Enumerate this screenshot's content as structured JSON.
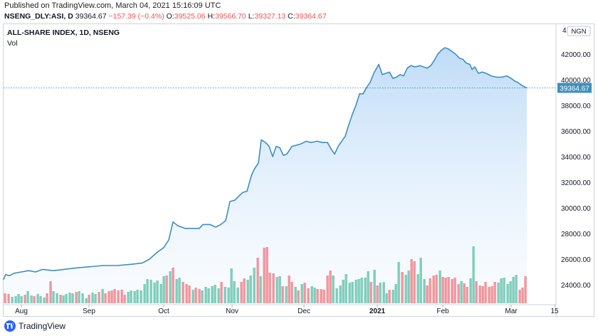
{
  "header": {
    "published": "Published on TradingView.com, March 04, 2021 15:16:09 UTC",
    "symbol": "NSENG_DLY:ASI, D",
    "last": "39364.67",
    "change": "−157.39 (−0.4%)",
    "o_label": "O:",
    "o_value": "39525.06",
    "h_label": "H:",
    "h_value": "39566.70",
    "l_label": "L:",
    "l_value": "39327.13",
    "c_label": "C:",
    "c_value": "39364.67"
  },
  "legend": {
    "title": "ALL-SHARE INDEX, 1D, NSENG",
    "vol_label": "Vol"
  },
  "footer": {
    "brand": "TradingView"
  },
  "colors": {
    "line": "#3d8fbf",
    "fill_top": "#a9d0f5",
    "vol_up": "#7fcdbb",
    "vol_down": "#f0959c",
    "last_price_bg": "#3d8fbf"
  },
  "chart_data": {
    "type": "area",
    "title": "ALL-SHARE INDEX, 1D, NSENG",
    "currency_badge": "NGN",
    "y_axis_top_label_partial": "4",
    "ylim": [
      23000,
      44000
    ],
    "y_ticks": [
      "42000.00",
      "40000.00",
      "38000.00",
      "36000.00",
      "34000.00",
      "32000.00",
      "30000.00",
      "28000.00",
      "26000.00",
      "24000.00"
    ],
    "y_tick_values": [
      42000,
      40000,
      38000,
      36000,
      34000,
      32000,
      30000,
      28000,
      26000,
      24000
    ],
    "x_tick_labels": [
      "Aug",
      "Sep",
      "Oct",
      "Nov",
      "Dec",
      "2021",
      "Feb",
      "Mar",
      "15"
    ],
    "last_value": 39364.67,
    "last_value_label": "39364.67",
    "series": [
      {
        "name": "ALL-SHARE INDEX",
        "points": [
          [
            0,
            24400
          ],
          [
            3,
            24800
          ],
          [
            8,
            24700
          ],
          [
            15,
            24900
          ],
          [
            25,
            25000
          ],
          [
            35,
            25100
          ],
          [
            45,
            25000
          ],
          [
            55,
            25200
          ],
          [
            70,
            25100
          ],
          [
            85,
            25200
          ],
          [
            100,
            25300
          ],
          [
            120,
            25400
          ],
          [
            140,
            25500
          ],
          [
            160,
            25500
          ],
          [
            180,
            25600
          ],
          [
            195,
            25700
          ],
          [
            205,
            26000
          ],
          [
            215,
            26500
          ],
          [
            225,
            26900
          ],
          [
            232,
            27500
          ],
          [
            238,
            28900
          ],
          [
            245,
            28600
          ],
          [
            255,
            28400
          ],
          [
            265,
            28400
          ],
          [
            275,
            28400
          ],
          [
            280,
            28700
          ],
          [
            290,
            28700
          ],
          [
            298,
            28500
          ],
          [
            305,
            28700
          ],
          [
            312,
            29000
          ],
          [
            318,
            30500
          ],
          [
            325,
            30600
          ],
          [
            330,
            30900
          ],
          [
            336,
            31200
          ],
          [
            342,
            31300
          ],
          [
            348,
            32500
          ],
          [
            352,
            33000
          ],
          [
            358,
            33500
          ],
          [
            362,
            35300
          ],
          [
            368,
            35100
          ],
          [
            373,
            34800
          ],
          [
            378,
            34000
          ],
          [
            383,
            34800
          ],
          [
            388,
            34700
          ],
          [
            393,
            34100
          ],
          [
            398,
            34200
          ],
          [
            405,
            34800
          ],
          [
            412,
            34900
          ],
          [
            418,
            35000
          ],
          [
            425,
            35200
          ],
          [
            432,
            35100
          ],
          [
            440,
            35200
          ],
          [
            448,
            35100
          ],
          [
            455,
            35100
          ],
          [
            460,
            34600
          ],
          [
            465,
            34200
          ],
          [
            470,
            34800
          ],
          [
            475,
            35200
          ],
          [
            480,
            35600
          ],
          [
            485,
            36500
          ],
          [
            490,
            37300
          ],
          [
            495,
            38000
          ],
          [
            500,
            38900
          ],
          [
            505,
            38900
          ],
          [
            510,
            39400
          ],
          [
            515,
            39800
          ],
          [
            520,
            40500
          ],
          [
            527,
            41200
          ],
          [
            532,
            40400
          ],
          [
            537,
            40500
          ],
          [
            542,
            40600
          ],
          [
            547,
            40100
          ],
          [
            552,
            40200
          ],
          [
            557,
            40400
          ],
          [
            562,
            40300
          ],
          [
            567,
            40900
          ],
          [
            572,
            41100
          ],
          [
            578,
            41000
          ],
          [
            585,
            41100
          ],
          [
            590,
            41000
          ],
          [
            595,
            40900
          ],
          [
            600,
            41100
          ],
          [
            605,
            41500
          ],
          [
            610,
            42000
          ],
          [
            615,
            42300
          ],
          [
            620,
            42500
          ],
          [
            625,
            42400
          ],
          [
            630,
            42200
          ],
          [
            635,
            42000
          ],
          [
            640,
            41700
          ],
          [
            645,
            41600
          ],
          [
            650,
            41300
          ],
          [
            655,
            41200
          ],
          [
            658,
            40800
          ],
          [
            662,
            41000
          ],
          [
            667,
            40500
          ],
          [
            672,
            40600
          ],
          [
            678,
            40500
          ],
          [
            685,
            40300
          ],
          [
            692,
            40200
          ],
          [
            700,
            40200
          ],
          [
            707,
            40300
          ],
          [
            713,
            40100
          ],
          [
            718,
            39900
          ],
          [
            722,
            39800
          ],
          [
            727,
            39600
          ],
          [
            733,
            39400
          ],
          [
            735,
            39364.67
          ]
        ]
      }
    ],
    "volume": {
      "name": "Vol",
      "bars": [
        [
          2,
          0.14,
          0
        ],
        [
          7,
          0.13,
          0
        ],
        [
          12,
          0.09,
          1
        ],
        [
          17,
          0.1,
          1
        ],
        [
          21,
          0.13,
          1
        ],
        [
          25,
          0.1,
          1
        ],
        [
          30,
          0.12,
          0
        ],
        [
          34,
          0.17,
          1
        ],
        [
          39,
          0.11,
          1
        ],
        [
          43,
          0.1,
          0
        ],
        [
          48,
          0.13,
          1
        ],
        [
          52,
          0.1,
          1
        ],
        [
          57,
          0.08,
          1
        ],
        [
          61,
          0.14,
          0
        ],
        [
          66,
          0.31,
          0
        ],
        [
          70,
          0.17,
          1
        ],
        [
          75,
          0.14,
          1
        ],
        [
          80,
          0.12,
          0
        ],
        [
          84,
          0.11,
          1
        ],
        [
          88,
          0.13,
          1
        ],
        [
          93,
          0.15,
          1
        ],
        [
          97,
          0.14,
          1
        ],
        [
          102,
          0.16,
          0
        ],
        [
          106,
          0.17,
          1
        ],
        [
          111,
          0.14,
          1
        ],
        [
          116,
          0.07,
          1
        ],
        [
          120,
          0.12,
          0
        ],
        [
          125,
          0.15,
          1
        ],
        [
          129,
          0.13,
          1
        ],
        [
          134,
          0.16,
          0
        ],
        [
          139,
          0.2,
          1
        ],
        [
          143,
          0.14,
          0
        ],
        [
          148,
          0.17,
          0
        ],
        [
          152,
          0.18,
          0
        ],
        [
          156,
          0.2,
          0
        ],
        [
          161,
          0.18,
          0
        ],
        [
          166,
          0.19,
          0
        ],
        [
          170,
          0.12,
          0
        ],
        [
          175,
          0.16,
          1
        ],
        [
          179,
          0.18,
          1
        ],
        [
          184,
          0.17,
          1
        ],
        [
          188,
          0.19,
          1
        ],
        [
          193,
          0.18,
          1
        ],
        [
          198,
          0.27,
          1
        ],
        [
          202,
          0.34,
          1
        ],
        [
          207,
          0.33,
          1
        ],
        [
          212,
          0.29,
          1
        ],
        [
          216,
          0.32,
          1
        ],
        [
          221,
          0.27,
          1
        ],
        [
          225,
          0.38,
          1
        ],
        [
          229,
          0.39,
          0
        ],
        [
          234,
          0.45,
          1
        ],
        [
          238,
          0.5,
          0
        ],
        [
          243,
          0.34,
          1
        ],
        [
          247,
          0.36,
          1
        ],
        [
          252,
          0.3,
          0
        ],
        [
          257,
          0.27,
          0
        ],
        [
          261,
          0.25,
          0
        ],
        [
          266,
          0.19,
          1
        ],
        [
          270,
          0.22,
          0
        ],
        [
          275,
          0.2,
          0
        ],
        [
          279,
          0.18,
          1
        ],
        [
          284,
          0.23,
          1
        ],
        [
          288,
          0.21,
          1
        ],
        [
          293,
          0.24,
          1
        ],
        [
          297,
          0.26,
          1
        ],
        [
          302,
          0.21,
          1
        ],
        [
          306,
          0.3,
          0
        ],
        [
          311,
          0.23,
          1
        ],
        [
          316,
          0.22,
          1
        ],
        [
          320,
          0.49,
          1
        ],
        [
          324,
          0.31,
          1
        ],
        [
          329,
          0.22,
          1
        ],
        [
          334,
          0.3,
          0
        ],
        [
          338,
          0.35,
          0
        ],
        [
          343,
          0.33,
          1
        ],
        [
          347,
          0.39,
          1
        ],
        [
          352,
          0.5,
          1
        ],
        [
          357,
          0.64,
          0
        ],
        [
          361,
          0.38,
          1
        ],
        [
          366,
          0.78,
          0
        ],
        [
          370,
          0.79,
          0
        ],
        [
          374,
          0.43,
          0
        ],
        [
          379,
          0.42,
          0
        ],
        [
          384,
          0.37,
          1
        ],
        [
          388,
          0.38,
          1
        ],
        [
          392,
          0.24,
          0
        ],
        [
          397,
          0.24,
          1
        ],
        [
          401,
          0.39,
          0
        ],
        [
          405,
          0.3,
          0
        ],
        [
          410,
          0.23,
          1
        ],
        [
          414,
          0.18,
          0
        ],
        [
          419,
          0.27,
          1
        ],
        [
          423,
          0.29,
          0
        ],
        [
          428,
          0.21,
          0
        ],
        [
          433,
          0.24,
          1
        ],
        [
          437,
          0.22,
          1
        ],
        [
          441,
          0.2,
          0
        ],
        [
          446,
          0.2,
          0
        ],
        [
          450,
          0.19,
          0
        ],
        [
          455,
          0.39,
          0
        ],
        [
          459,
          0.46,
          0
        ],
        [
          463,
          0.39,
          1
        ],
        [
          468,
          0.21,
          1
        ],
        [
          473,
          0.25,
          1
        ],
        [
          477,
          0.33,
          1
        ],
        [
          481,
          0.41,
          1
        ],
        [
          486,
          0.29,
          1
        ],
        [
          490,
          0.3,
          1
        ],
        [
          495,
          0.33,
          1
        ],
        [
          499,
          0.34,
          1
        ],
        [
          503,
          0.36,
          1
        ],
        [
          508,
          0.36,
          1
        ],
        [
          512,
          0.45,
          1
        ],
        [
          516,
          0.3,
          0
        ],
        [
          521,
          0.47,
          1
        ],
        [
          525,
          0.25,
          0
        ],
        [
          529,
          0.29,
          1
        ],
        [
          534,
          0.3,
          1
        ],
        [
          538,
          0.14,
          1
        ],
        [
          542,
          0.19,
          0
        ],
        [
          547,
          0.19,
          1
        ],
        [
          551,
          0.27,
          1
        ],
        [
          555,
          0.58,
          1
        ],
        [
          560,
          0.44,
          0
        ],
        [
          565,
          0.4,
          1
        ],
        [
          569,
          0.46,
          1
        ],
        [
          573,
          0.62,
          0
        ],
        [
          577,
          0.59,
          0
        ],
        [
          582,
          0.41,
          1
        ],
        [
          586,
          0.64,
          1
        ],
        [
          591,
          0.34,
          1
        ],
        [
          595,
          0.25,
          0
        ],
        [
          599,
          0.35,
          0
        ],
        [
          604,
          0.39,
          0
        ],
        [
          608,
          0.4,
          0
        ],
        [
          613,
          0.46,
          1
        ],
        [
          617,
          0.37,
          0
        ],
        [
          621,
          0.36,
          0
        ],
        [
          625,
          0.37,
          0
        ],
        [
          630,
          0.34,
          0
        ],
        [
          634,
          0.36,
          0
        ],
        [
          639,
          0.27,
          0
        ],
        [
          643,
          0.31,
          1
        ],
        [
          647,
          0.28,
          0
        ],
        [
          651,
          0.23,
          0
        ],
        [
          656,
          0.35,
          1
        ],
        [
          660,
          0.8,
          1
        ],
        [
          664,
          0.31,
          0
        ],
        [
          669,
          0.25,
          0
        ],
        [
          673,
          0.24,
          0
        ],
        [
          677,
          0.3,
          0
        ],
        [
          682,
          0.23,
          0
        ],
        [
          686,
          0.24,
          0
        ],
        [
          690,
          0.3,
          0
        ],
        [
          695,
          0.29,
          1
        ],
        [
          699,
          0.35,
          1
        ],
        [
          703,
          0.36,
          1
        ],
        [
          708,
          0.27,
          1
        ],
        [
          712,
          0.31,
          1
        ],
        [
          716,
          0.37,
          1
        ],
        [
          720,
          0.4,
          1
        ],
        [
          725,
          0.19,
          0
        ],
        [
          729,
          0.22,
          0
        ],
        [
          733,
          0.38,
          0
        ]
      ]
    }
  }
}
